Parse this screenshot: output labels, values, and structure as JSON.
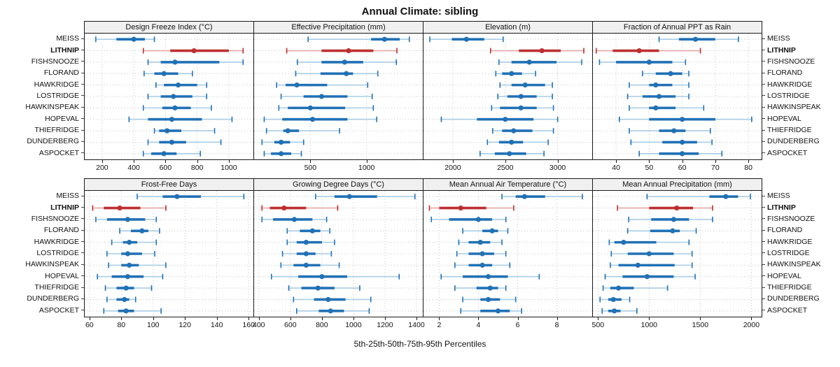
{
  "title": "Annual Climate: sibling",
  "caption": "5th-25th-50th-75th-95th Percentiles",
  "highlight_site": "LITHNIP",
  "colors": {
    "series_blue": "#2171B5",
    "series_blue_light": "#A9CCE5",
    "highlight_red": "#BE2F2F",
    "highlight_red_light": "#E3A6A6",
    "grid": "#C4C4C4",
    "panel_border": "#1a1a1a",
    "strip_bg": "#F0F0F0"
  },
  "chart_data": {
    "type": "scatter",
    "subtype": "dot-and-whisker percentile intervals (5-25-50-75-95), horizontal",
    "legend_position": "none",
    "grid": "dotted",
    "percentile_labels": [
      "5th",
      "25th",
      "50th",
      "75th",
      "95th"
    ],
    "categories": [
      "MEISS",
      "LITHNIP",
      "FISHSNOOZE",
      "FLORAND",
      "HAWKRIDGE",
      "LOSTRIDGE",
      "HAWKINSPEAK",
      "HOPEVAL",
      "THIEFRIDGE",
      "DUNDERBERG",
      "ASPOCKET"
    ],
    "panels": [
      {
        "title": "Design Freeze Index (°C)",
        "row": 0,
        "xlim": [
          90,
          1155
        ],
        "ticks": [
          200,
          400,
          600,
          800,
          1000
        ],
        "values": [
          [
            160,
            290,
            400,
            470,
            530
          ],
          [
            460,
            630,
            780,
            1000,
            1090
          ],
          [
            490,
            570,
            660,
            940,
            1090
          ],
          [
            465,
            530,
            590,
            680,
            770
          ],
          [
            540,
            590,
            680,
            800,
            860
          ],
          [
            490,
            570,
            650,
            770,
            860
          ],
          [
            460,
            580,
            660,
            760,
            890
          ],
          [
            370,
            490,
            640,
            830,
            1020
          ],
          [
            530,
            560,
            610,
            700,
            910
          ],
          [
            490,
            560,
            640,
            730,
            950
          ],
          [
            460,
            510,
            590,
            670,
            820
          ]
        ]
      },
      {
        "title": "Effective Precipitation (mm)",
        "row": 0,
        "xlim": [
          0,
          1500
        ],
        "ticks": [
          500,
          1000
        ],
        "values": [
          [
            480,
            1040,
            1160,
            1295,
            1380
          ],
          [
            290,
            600,
            840,
            1060,
            1270
          ],
          [
            385,
            600,
            805,
            970,
            1265
          ],
          [
            370,
            590,
            820,
            880,
            1100
          ],
          [
            200,
            280,
            380,
            650,
            1010
          ],
          [
            240,
            440,
            600,
            830,
            1050
          ],
          [
            220,
            300,
            500,
            810,
            1060
          ],
          [
            90,
            250,
            520,
            830,
            1090
          ],
          [
            110,
            260,
            300,
            400,
            760
          ],
          [
            70,
            180,
            240,
            320,
            440
          ],
          [
            90,
            150,
            240,
            330,
            420
          ]
        ]
      },
      {
        "title": "Elevation (m)",
        "row": 0,
        "xlim": [
          1720,
          3330
        ],
        "ticks": [
          2000,
          2500,
          3000
        ],
        "values": [
          [
            1780,
            1990,
            2130,
            2300,
            2480
          ],
          [
            2360,
            2630,
            2850,
            3030,
            3250
          ],
          [
            2440,
            2560,
            2730,
            2990,
            3230
          ],
          [
            2410,
            2470,
            2560,
            2660,
            2790
          ],
          [
            2450,
            2560,
            2690,
            2880,
            2950
          ],
          [
            2430,
            2520,
            2650,
            2800,
            2950
          ],
          [
            2370,
            2450,
            2650,
            2800,
            2960
          ],
          [
            1890,
            2230,
            2500,
            2770,
            3000
          ],
          [
            2380,
            2470,
            2580,
            2760,
            2960
          ],
          [
            2330,
            2440,
            2560,
            2670,
            2910
          ],
          [
            2260,
            2400,
            2540,
            2700,
            2870
          ]
        ]
      },
      {
        "title": "Fraction of Annual PPT as Rain",
        "row": 0,
        "xlim": [
          33,
          84
        ],
        "ticks": [
          40,
          50,
          60,
          70,
          80
        ],
        "values": [
          [
            53,
            59,
            64,
            70,
            77
          ],
          [
            34,
            39,
            47,
            53,
            65.5
          ],
          [
            35,
            40,
            50,
            57,
            61
          ],
          [
            48,
            52,
            56.5,
            60,
            62
          ],
          [
            44,
            50,
            52,
            57,
            62
          ],
          [
            43.5,
            48,
            53,
            58,
            62
          ],
          [
            44,
            50,
            52,
            58,
            66.5
          ],
          [
            41,
            50,
            60,
            70,
            81
          ],
          [
            44,
            53,
            57.5,
            61,
            68.5
          ],
          [
            44.5,
            54,
            60,
            64.5,
            69
          ],
          [
            47,
            53,
            60,
            65,
            72
          ]
        ]
      },
      {
        "title": "Frost-Free Days",
        "row": 1,
        "xlim": [
          57,
          163
        ],
        "ticks": [
          60,
          80,
          100,
          120,
          140,
          160
        ],
        "values": [
          [
            90,
            106,
            115,
            130,
            157
          ],
          [
            62,
            69,
            79,
            92,
            108
          ],
          [
            64,
            71,
            84,
            95,
            102
          ],
          [
            79,
            86,
            93,
            97,
            104
          ],
          [
            74,
            81,
            85,
            90,
            102
          ],
          [
            71,
            80,
            84,
            93,
            101
          ],
          [
            72,
            80,
            85,
            91,
            108
          ],
          [
            65,
            74,
            84,
            94,
            106
          ],
          [
            70,
            77,
            83,
            88,
            99
          ],
          [
            71,
            77,
            82,
            85,
            89
          ],
          [
            69,
            78,
            83,
            88,
            105
          ]
        ]
      },
      {
        "title": "Growing Degree Days (°C)",
        "row": 1,
        "xlim": [
          370,
          1440
        ],
        "ticks": [
          400,
          600,
          800,
          1000,
          1200,
          1400
        ],
        "values": [
          [
            760,
            880,
            975,
            1150,
            1390
          ],
          [
            420,
            470,
            560,
            700,
            900
          ],
          [
            420,
            490,
            625,
            740,
            830
          ],
          [
            580,
            660,
            740,
            790,
            850
          ],
          [
            580,
            640,
            700,
            800,
            880
          ],
          [
            550,
            640,
            700,
            760,
            860
          ],
          [
            540,
            620,
            700,
            790,
            910
          ],
          [
            480,
            650,
            800,
            960,
            1290
          ],
          [
            590,
            670,
            775,
            880,
            1040
          ],
          [
            620,
            750,
            840,
            950,
            1110
          ],
          [
            640,
            780,
            855,
            940,
            1100
          ]
        ]
      },
      {
        "title": "Mean Annual Air Temperature (°C)",
        "row": 1,
        "xlim": [
          1.2,
          9.8
        ],
        "ticks": [
          2,
          4,
          6,
          8
        ],
        "values": [
          [
            5.2,
            5.9,
            6.35,
            7.4,
            9.3
          ],
          [
            1.5,
            2.0,
            3.1,
            4.4,
            5.8
          ],
          [
            1.6,
            2.5,
            4.0,
            4.7,
            5.4
          ],
          [
            3.2,
            4.2,
            4.7,
            5.0,
            5.5
          ],
          [
            3.0,
            3.5,
            4.1,
            4.6,
            5.2
          ],
          [
            2.9,
            3.5,
            4.2,
            4.8,
            5.4
          ],
          [
            2.8,
            3.5,
            4.2,
            4.7,
            5.6
          ],
          [
            2.1,
            3.2,
            4.5,
            5.5,
            7.1
          ],
          [
            2.8,
            3.9,
            4.6,
            5.0,
            5.4
          ],
          [
            3.2,
            4.1,
            4.5,
            5.1,
            5.9
          ],
          [
            3.1,
            4.1,
            5.0,
            5.6,
            6.2
          ]
        ]
      },
      {
        "title": "Mean Annual Precipitation (mm)",
        "row": 1,
        "xlim": [
          450,
          2100
        ],
        "ticks": [
          500,
          1000,
          1500,
          2000
        ],
        "values": [
          [
            980,
            1590,
            1750,
            1870,
            1990
          ],
          [
            690,
            1000,
            1270,
            1430,
            1620
          ],
          [
            800,
            1020,
            1240,
            1390,
            1620
          ],
          [
            790,
            1010,
            1230,
            1300,
            1460
          ],
          [
            610,
            660,
            750,
            1070,
            1390
          ],
          [
            630,
            790,
            1000,
            1240,
            1420
          ],
          [
            620,
            700,
            890,
            1250,
            1420
          ],
          [
            570,
            740,
            980,
            1240,
            1450
          ],
          [
            550,
            620,
            700,
            850,
            1180
          ],
          [
            520,
            600,
            650,
            730,
            810
          ],
          [
            540,
            600,
            660,
            720,
            880
          ]
        ]
      }
    ]
  }
}
